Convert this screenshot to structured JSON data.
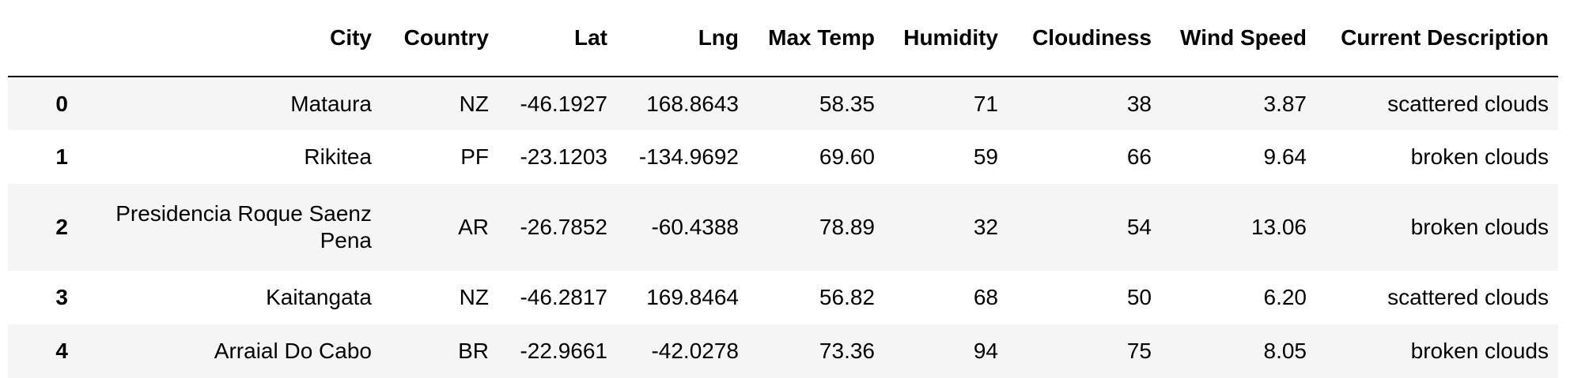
{
  "table": {
    "columns": [
      "City",
      "Country",
      "Lat",
      "Lng",
      "Max Temp",
      "Humidity",
      "Cloudiness",
      "Wind Speed",
      "Current Description"
    ],
    "rows": [
      {
        "index": "0",
        "City": "Mataura",
        "Country": "NZ",
        "Lat": "-46.1927",
        "Lng": "168.8643",
        "Max Temp": "58.35",
        "Humidity": "71",
        "Cloudiness": "38",
        "Wind Speed": "3.87",
        "Current Description": "scattered clouds"
      },
      {
        "index": "1",
        "City": "Rikitea",
        "Country": "PF",
        "Lat": "-23.1203",
        "Lng": "-134.9692",
        "Max Temp": "69.60",
        "Humidity": "59",
        "Cloudiness": "66",
        "Wind Speed": "9.64",
        "Current Description": "broken clouds"
      },
      {
        "index": "2",
        "City": "Presidencia Roque Saenz Pena",
        "Country": "AR",
        "Lat": "-26.7852",
        "Lng": "-60.4388",
        "Max Temp": "78.89",
        "Humidity": "32",
        "Cloudiness": "54",
        "Wind Speed": "13.06",
        "Current Description": "broken clouds"
      },
      {
        "index": "3",
        "City": "Kaitangata",
        "Country": "NZ",
        "Lat": "-46.2817",
        "Lng": "169.8464",
        "Max Temp": "56.82",
        "Humidity": "68",
        "Cloudiness": "50",
        "Wind Speed": "6.20",
        "Current Description": "scattered clouds"
      },
      {
        "index": "4",
        "City": "Arraial Do Cabo",
        "Country": "BR",
        "Lat": "-22.9661",
        "Lng": "-42.0278",
        "Max Temp": "73.36",
        "Humidity": "94",
        "Cloudiness": "75",
        "Wind Speed": "8.05",
        "Current Description": "broken clouds"
      }
    ]
  },
  "colors": {
    "stripe": "#f5f5f5",
    "text": "#000000",
    "header_rule": "#000000"
  }
}
